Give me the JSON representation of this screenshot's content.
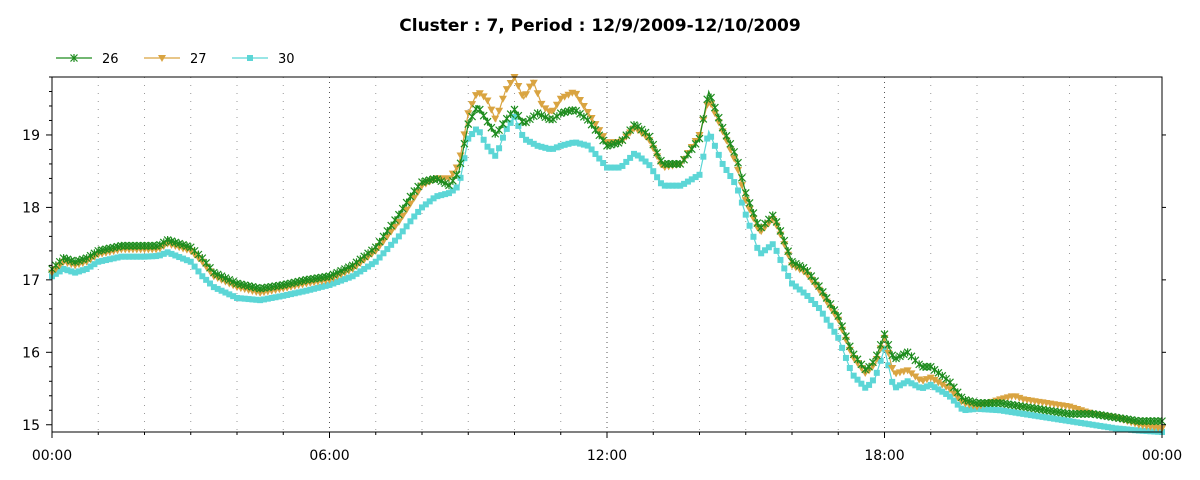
{
  "chart_data": {
    "type": "line",
    "title": "Cluster : 7, Period : 12/9/2009-12/10/2009",
    "xlabel": "",
    "ylabel": "",
    "xlim": [
      0,
      24
    ],
    "ylim": [
      14.9,
      19.8
    ],
    "x_ticks": [
      {
        "value": 0,
        "label": "00:00"
      },
      {
        "value": 6,
        "label": "06:00"
      },
      {
        "value": 12,
        "label": "12:00"
      },
      {
        "value": 18,
        "label": "18:00"
      },
      {
        "value": 24,
        "label": "00:00"
      }
    ],
    "y_ticks": [
      {
        "value": 15,
        "label": "15"
      },
      {
        "value": 16,
        "label": "16"
      },
      {
        "value": 17,
        "label": "17"
      },
      {
        "value": 18,
        "label": "18"
      },
      {
        "value": 19,
        "label": "19"
      }
    ],
    "grid": true,
    "legend_position": "top-left",
    "series": [
      {
        "name": "26",
        "color": "#1e8c1e",
        "marker": "star",
        "points": [
          [
            0,
            17.15
          ],
          [
            0.25,
            17.3
          ],
          [
            0.5,
            17.25
          ],
          [
            0.75,
            17.3
          ],
          [
            1,
            17.4
          ],
          [
            1.5,
            17.47
          ],
          [
            2,
            17.47
          ],
          [
            2.3,
            17.47
          ],
          [
            2.5,
            17.55
          ],
          [
            3,
            17.45
          ],
          [
            3.25,
            17.3
          ],
          [
            3.5,
            17.1
          ],
          [
            4,
            16.95
          ],
          [
            4.5,
            16.88
          ],
          [
            5,
            16.93
          ],
          [
            5.5,
            17.0
          ],
          [
            6,
            17.05
          ],
          [
            6.5,
            17.2
          ],
          [
            7,
            17.45
          ],
          [
            7.5,
            17.9
          ],
          [
            7.8,
            18.2
          ],
          [
            8,
            18.35
          ],
          [
            8.3,
            18.4
          ],
          [
            8.6,
            18.3
          ],
          [
            8.8,
            18.5
          ],
          [
            9,
            19.15
          ],
          [
            9.2,
            19.4
          ],
          [
            9.4,
            19.2
          ],
          [
            9.6,
            19.0
          ],
          [
            9.8,
            19.2
          ],
          [
            10,
            19.35
          ],
          [
            10.2,
            19.15
          ],
          [
            10.5,
            19.3
          ],
          [
            10.8,
            19.2
          ],
          [
            11,
            19.3
          ],
          [
            11.3,
            19.35
          ],
          [
            11.6,
            19.2
          ],
          [
            12,
            18.85
          ],
          [
            12.3,
            18.9
          ],
          [
            12.6,
            19.15
          ],
          [
            12.9,
            19.0
          ],
          [
            13.2,
            18.6
          ],
          [
            13.6,
            18.6
          ],
          [
            14,
            18.95
          ],
          [
            14.2,
            19.6
          ],
          [
            14.5,
            19.1
          ],
          [
            14.8,
            18.7
          ],
          [
            15,
            18.2
          ],
          [
            15.3,
            17.7
          ],
          [
            15.6,
            17.9
          ],
          [
            15.8,
            17.6
          ],
          [
            16,
            17.25
          ],
          [
            16.3,
            17.15
          ],
          [
            16.6,
            16.9
          ],
          [
            17,
            16.5
          ],
          [
            17.3,
            16.0
          ],
          [
            17.6,
            15.75
          ],
          [
            17.8,
            15.9
          ],
          [
            18,
            16.25
          ],
          [
            18.2,
            15.9
          ],
          [
            18.5,
            16.0
          ],
          [
            18.8,
            15.8
          ],
          [
            19,
            15.8
          ],
          [
            19.4,
            15.6
          ],
          [
            19.7,
            15.35
          ],
          [
            20,
            15.3
          ],
          [
            20.5,
            15.3
          ],
          [
            21,
            15.25
          ],
          [
            21.5,
            15.2
          ],
          [
            22,
            15.15
          ],
          [
            22.5,
            15.15
          ],
          [
            23,
            15.1
          ],
          [
            23.5,
            15.05
          ],
          [
            24,
            15.05
          ]
        ]
      },
      {
        "name": "27",
        "color": "#d9a441",
        "marker": "triangle-down",
        "points": [
          [
            0,
            17.1
          ],
          [
            0.25,
            17.25
          ],
          [
            0.5,
            17.2
          ],
          [
            0.75,
            17.25
          ],
          [
            1,
            17.35
          ],
          [
            1.5,
            17.42
          ],
          [
            2,
            17.42
          ],
          [
            2.3,
            17.42
          ],
          [
            2.5,
            17.5
          ],
          [
            3,
            17.4
          ],
          [
            3.25,
            17.25
          ],
          [
            3.5,
            17.05
          ],
          [
            4,
            16.9
          ],
          [
            4.5,
            16.82
          ],
          [
            5,
            16.88
          ],
          [
            5.5,
            16.95
          ],
          [
            6,
            17.0
          ],
          [
            6.5,
            17.15
          ],
          [
            7,
            17.4
          ],
          [
            7.5,
            17.8
          ],
          [
            7.8,
            18.1
          ],
          [
            8,
            18.3
          ],
          [
            8.3,
            18.4
          ],
          [
            8.6,
            18.4
          ],
          [
            8.8,
            18.6
          ],
          [
            9,
            19.3
          ],
          [
            9.2,
            19.6
          ],
          [
            9.4,
            19.5
          ],
          [
            9.6,
            19.2
          ],
          [
            9.8,
            19.6
          ],
          [
            10,
            19.8
          ],
          [
            10.2,
            19.5
          ],
          [
            10.4,
            19.75
          ],
          [
            10.6,
            19.4
          ],
          [
            10.8,
            19.3
          ],
          [
            11,
            19.5
          ],
          [
            11.3,
            19.6
          ],
          [
            11.6,
            19.3
          ],
          [
            12,
            18.9
          ],
          [
            12.3,
            18.9
          ],
          [
            12.6,
            19.1
          ],
          [
            12.9,
            18.95
          ],
          [
            13.2,
            18.55
          ],
          [
            13.6,
            18.6
          ],
          [
            14,
            19.0
          ],
          [
            14.2,
            19.5
          ],
          [
            14.5,
            19.05
          ],
          [
            14.8,
            18.6
          ],
          [
            15,
            18.1
          ],
          [
            15.3,
            17.65
          ],
          [
            15.6,
            17.85
          ],
          [
            15.8,
            17.55
          ],
          [
            16,
            17.2
          ],
          [
            16.3,
            17.1
          ],
          [
            16.6,
            16.85
          ],
          [
            17,
            16.45
          ],
          [
            17.3,
            15.95
          ],
          [
            17.6,
            15.7
          ],
          [
            17.8,
            15.85
          ],
          [
            18,
            16.2
          ],
          [
            18.2,
            15.7
          ],
          [
            18.5,
            15.75
          ],
          [
            18.8,
            15.6
          ],
          [
            19,
            15.65
          ],
          [
            19.4,
            15.5
          ],
          [
            19.7,
            15.3
          ],
          [
            20,
            15.25
          ],
          [
            20.5,
            15.35
          ],
          [
            20.8,
            15.4
          ],
          [
            21,
            15.35
          ],
          [
            21.5,
            15.3
          ],
          [
            22,
            15.25
          ],
          [
            22.5,
            15.15
          ],
          [
            23,
            15.1
          ],
          [
            23.5,
            15.0
          ],
          [
            24,
            14.95
          ]
        ]
      },
      {
        "name": "30",
        "color": "#5cd6d6",
        "marker": "square",
        "points": [
          [
            0,
            17.05
          ],
          [
            0.25,
            17.15
          ],
          [
            0.5,
            17.1
          ],
          [
            0.75,
            17.15
          ],
          [
            1,
            17.25
          ],
          [
            1.5,
            17.32
          ],
          [
            2,
            17.32
          ],
          [
            2.3,
            17.33
          ],
          [
            2.5,
            17.38
          ],
          [
            3,
            17.25
          ],
          [
            3.25,
            17.05
          ],
          [
            3.5,
            16.9
          ],
          [
            4,
            16.75
          ],
          [
            4.5,
            16.72
          ],
          [
            5,
            16.78
          ],
          [
            5.5,
            16.85
          ],
          [
            6,
            16.93
          ],
          [
            6.5,
            17.05
          ],
          [
            7,
            17.25
          ],
          [
            7.5,
            17.6
          ],
          [
            7.8,
            17.85
          ],
          [
            8,
            18.0
          ],
          [
            8.3,
            18.15
          ],
          [
            8.6,
            18.2
          ],
          [
            8.8,
            18.3
          ],
          [
            9,
            18.95
          ],
          [
            9.2,
            19.1
          ],
          [
            9.4,
            18.85
          ],
          [
            9.6,
            18.7
          ],
          [
            9.8,
            19.05
          ],
          [
            10,
            19.25
          ],
          [
            10.2,
            18.95
          ],
          [
            10.5,
            18.85
          ],
          [
            10.8,
            18.8
          ],
          [
            11,
            18.85
          ],
          [
            11.3,
            18.9
          ],
          [
            11.6,
            18.85
          ],
          [
            12,
            18.55
          ],
          [
            12.3,
            18.55
          ],
          [
            12.6,
            18.75
          ],
          [
            12.9,
            18.6
          ],
          [
            13.2,
            18.3
          ],
          [
            13.6,
            18.3
          ],
          [
            14,
            18.45
          ],
          [
            14.2,
            19.05
          ],
          [
            14.5,
            18.6
          ],
          [
            14.8,
            18.3
          ],
          [
            15,
            17.9
          ],
          [
            15.3,
            17.35
          ],
          [
            15.6,
            17.5
          ],
          [
            15.8,
            17.2
          ],
          [
            16,
            16.95
          ],
          [
            16.3,
            16.8
          ],
          [
            16.6,
            16.6
          ],
          [
            17,
            16.2
          ],
          [
            17.3,
            15.7
          ],
          [
            17.6,
            15.5
          ],
          [
            17.8,
            15.65
          ],
          [
            18,
            16.05
          ],
          [
            18.2,
            15.5
          ],
          [
            18.5,
            15.6
          ],
          [
            18.8,
            15.5
          ],
          [
            19,
            15.55
          ],
          [
            19.4,
            15.4
          ],
          [
            19.7,
            15.2
          ],
          [
            20,
            15.22
          ],
          [
            20.5,
            15.2
          ],
          [
            21,
            15.15
          ],
          [
            21.5,
            15.1
          ],
          [
            22,
            15.05
          ],
          [
            22.5,
            15.0
          ],
          [
            23,
            14.95
          ],
          [
            23.5,
            14.92
          ],
          [
            24,
            14.9
          ]
        ]
      }
    ]
  }
}
